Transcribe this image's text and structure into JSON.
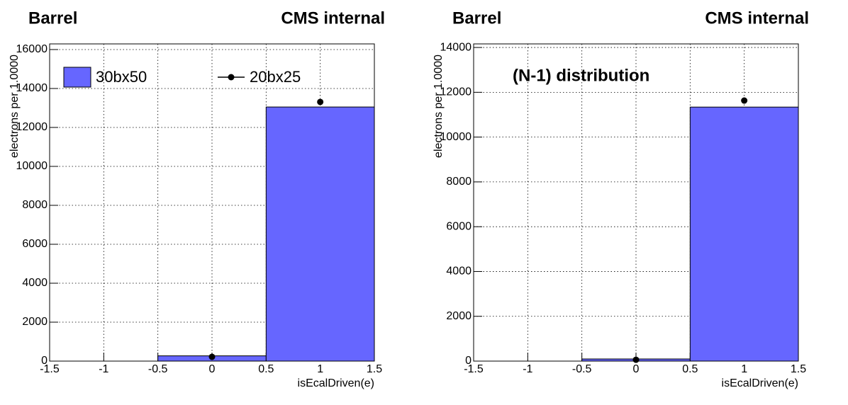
{
  "chart_data": [
    {
      "type": "histogram",
      "title": "Barrel",
      "subtitle": "CMS internal",
      "x_label": "isEcalDriven(e)",
      "y_label": "electrons per 1.0000",
      "bins": [
        -0.5,
        0.5,
        1.5
      ],
      "series": [
        {
          "name": "30bx50",
          "color": "#6666ff",
          "style": "bar",
          "values": [
            270,
            13050
          ]
        },
        {
          "name": "20bx25",
          "color": "#000000",
          "style": "points",
          "x": [
            0,
            1
          ],
          "values": [
            220,
            13310
          ]
        }
      ],
      "xlim": [
        -1.5,
        1.5
      ],
      "xticks": [
        -1.5,
        -1,
        -0.5,
        0,
        0.5,
        1,
        1.5
      ],
      "ylim": [
        0,
        16290
      ],
      "yticks": [
        0,
        2000,
        4000,
        6000,
        8000,
        10000,
        12000,
        14000,
        16000
      ],
      "grid": true,
      "legend": "top"
    },
    {
      "type": "histogram",
      "title": "Barrel",
      "subtitle": "CMS internal",
      "annotation": "(N-1) distribution",
      "x_label": "isEcalDriven(e)",
      "y_label": "electrons per 1.0000",
      "bins": [
        -0.5,
        0.5,
        1.5
      ],
      "series": [
        {
          "color": "#6666ff",
          "style": "bar",
          "values": [
            95,
            11340
          ]
        },
        {
          "color": "#000000",
          "style": "points",
          "x": [
            0,
            1
          ],
          "values": [
            60,
            11630
          ]
        }
      ],
      "xlim": [
        -1.5,
        1.5
      ],
      "xticks": [
        -1.5,
        -1,
        -0.5,
        0,
        0.5,
        1,
        1.5
      ],
      "ylim": [
        0,
        14160
      ],
      "yticks": [
        0,
        2000,
        4000,
        6000,
        8000,
        10000,
        12000,
        14000
      ],
      "grid": true
    }
  ]
}
